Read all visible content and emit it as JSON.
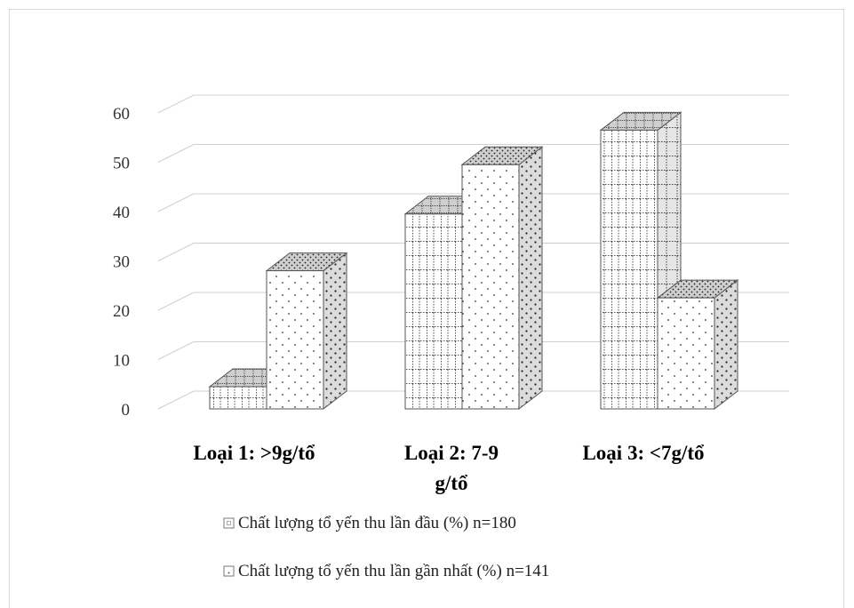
{
  "chart_data": {
    "type": "bar",
    "title": "",
    "xlabel": "",
    "ylabel": "",
    "ylim": [
      0,
      60
    ],
    "y_ticks": [
      "0",
      "10",
      "20",
      "30",
      "40",
      "50",
      "60"
    ],
    "categories": [
      [
        "Loại 1: >9g/tổ"
      ],
      [
        "Loại 2: 7-9",
        "g/tổ"
      ],
      [
        "Loại 3: <7g/tổ"
      ]
    ],
    "series": [
      {
        "name": "Chất lượng tổ yến thu lần đầu (%) n=180",
        "values": [
          4.5,
          39.5,
          56.5
        ],
        "pattern": "grid"
      },
      {
        "name": "Chất lượng tổ yến thu lần gần nhất (%) n=141",
        "values": [
          28,
          49.5,
          22.5
        ],
        "pattern": "dots"
      }
    ],
    "grid": true,
    "legend_position": "bottom",
    "style": "3d-column"
  }
}
